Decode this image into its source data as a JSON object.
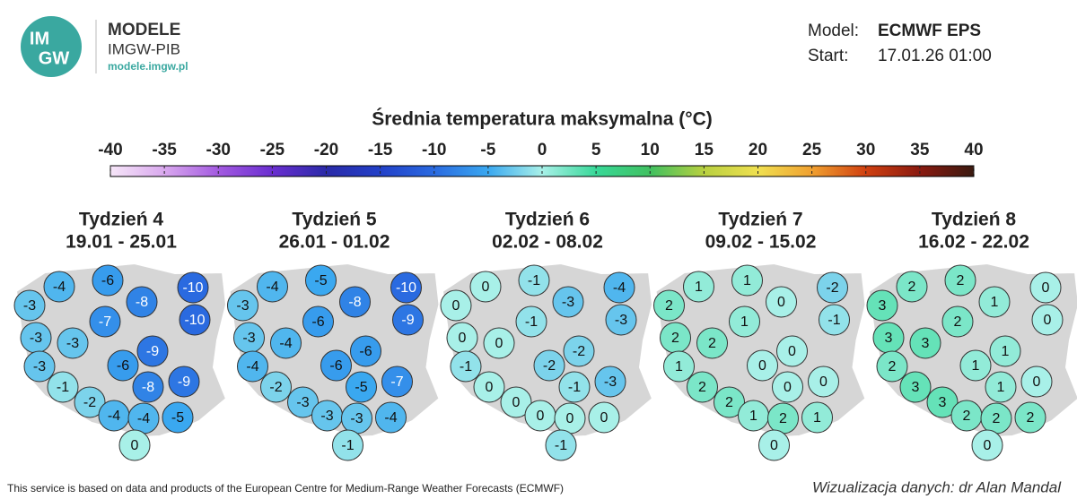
{
  "header": {
    "logo": [
      "IM",
      "GW"
    ],
    "brand": "MODELE",
    "org": "IMGW-PIB",
    "url": "modele.imgw.pl"
  },
  "model": {
    "model_label": "Model:",
    "model": "ECMWF EPS",
    "start_label": "Start:",
    "start": "17.01.26 01:00"
  },
  "legend": {
    "title": "Średnia temperatura maksymalna (°C)",
    "ticks": [
      -40,
      -35,
      -30,
      -25,
      -20,
      -15,
      -10,
      -5,
      0,
      5,
      10,
      15,
      20,
      25,
      30,
      35,
      40
    ],
    "colors": [
      "#f6e6f8",
      "#d9a8ee",
      "#a35ae0",
      "#6a2ed0",
      "#2a2aa8",
      "#2240c8",
      "#2a6ae0",
      "#3aa8f0",
      "#a8f0e8",
      "#38d898",
      "#40c060",
      "#b8d040",
      "#f0e050",
      "#f0a030",
      "#d04010",
      "#8a1a10",
      "#3a1a10"
    ]
  },
  "maps": [
    {
      "title": "Tydzień 4",
      "dates": "19.01 - 25.01",
      "values": [
        -3,
        -4,
        -6,
        -8,
        -10,
        -10,
        -7,
        -3,
        -3,
        -9,
        -3,
        -6,
        -9,
        -1,
        -8,
        -2,
        -4,
        -4,
        -5,
        0
      ]
    },
    {
      "title": "Tydzień 5",
      "dates": "26.01 - 01.02",
      "values": [
        -3,
        -4,
        -5,
        -8,
        -10,
        -9,
        -6,
        -3,
        -4,
        -6,
        -4,
        -6,
        -7,
        -2,
        -5,
        -3,
        -3,
        -3,
        -4,
        -1
      ]
    },
    {
      "title": "Tydzień 6",
      "dates": "02.02 - 08.02",
      "values": [
        0,
        0,
        -1,
        -3,
        -4,
        -3,
        -1,
        0,
        0,
        -2,
        -1,
        -2,
        -3,
        0,
        -1,
        0,
        0,
        0,
        0,
        -1
      ]
    },
    {
      "title": "Tydzień 7",
      "dates": "09.02 - 15.02",
      "values": [
        2,
        1,
        1,
        0,
        -2,
        -1,
        1,
        2,
        2,
        0,
        1,
        0,
        0,
        2,
        0,
        2,
        1,
        2,
        1,
        0
      ]
    },
    {
      "title": "Tydzień 8",
      "dates": "16.02 - 22.02",
      "values": [
        3,
        2,
        2,
        1,
        0,
        0,
        2,
        3,
        3,
        1,
        2,
        1,
        0,
        3,
        1,
        3,
        2,
        2,
        2,
        0
      ]
    }
  ],
  "footer": {
    "source": "This service is based on data and products of the European Centre for Medium-Range Weather Forecasts (ECMWF)",
    "credit": "Wizualizacja danych: dr Alan Mandal"
  }
}
